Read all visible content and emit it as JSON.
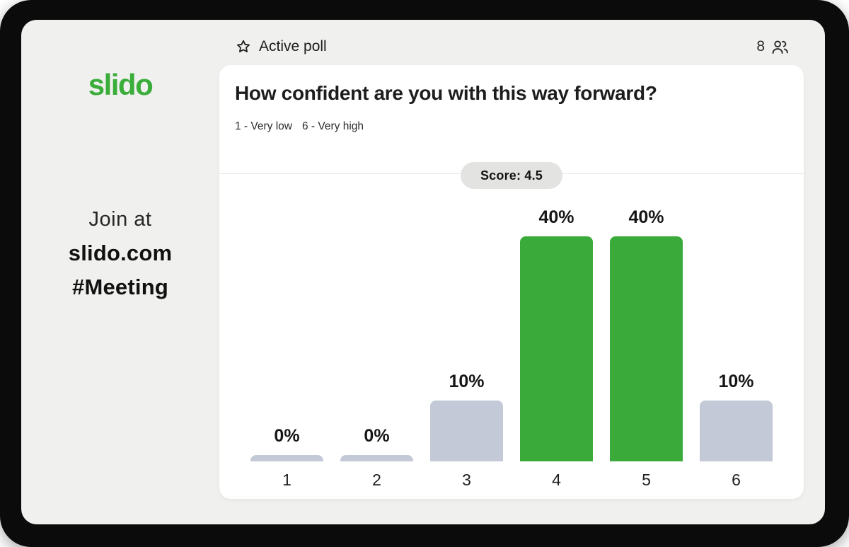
{
  "theme": {
    "colors": {
      "brand_green": "#3aad3a",
      "bar_green": "#3aaa3a",
      "bar_gray": "#c3c9d6",
      "panel_bg": "#f0f0ee",
      "frame": "#0b0b0b",
      "card": "#ffffff",
      "pill_bg": "#e3e3e1",
      "divider": "#e8e8e8",
      "text": "#1b1b1b"
    }
  },
  "brand": {
    "logo_text": "slido"
  },
  "sidebar": {
    "join_label": "Join at",
    "join_url": "slido.com",
    "event_code": "#Meeting"
  },
  "topbar": {
    "poll_status": "Active poll",
    "star_icon": "star-outline",
    "participants_count": "8",
    "participants_icon": "people-outline"
  },
  "poll": {
    "question": "How confident are you with this way forward?",
    "scale_min_hint": "1 - Very low",
    "scale_max_hint": "6 - Very high",
    "score_label": "Score: 4.5",
    "score_value": "4.5"
  },
  "chart_data": {
    "type": "bar",
    "title": "How confident are you with this way forward?",
    "categories": [
      "1",
      "2",
      "3",
      "4",
      "5",
      "6"
    ],
    "values": [
      0,
      0,
      10,
      40,
      40,
      10
    ],
    "value_labels": [
      "0%",
      "0%",
      "10%",
      "40%",
      "40%",
      "10%"
    ],
    "highlighted": [
      false,
      false,
      false,
      true,
      true,
      false
    ],
    "xlabel": "",
    "ylabel": "",
    "ylim": [
      0,
      45
    ],
    "grid": false,
    "legend_position": "none",
    "bar_color_highlight": "#3aaa3a",
    "bar_color_normal": "#c3c9d6"
  }
}
